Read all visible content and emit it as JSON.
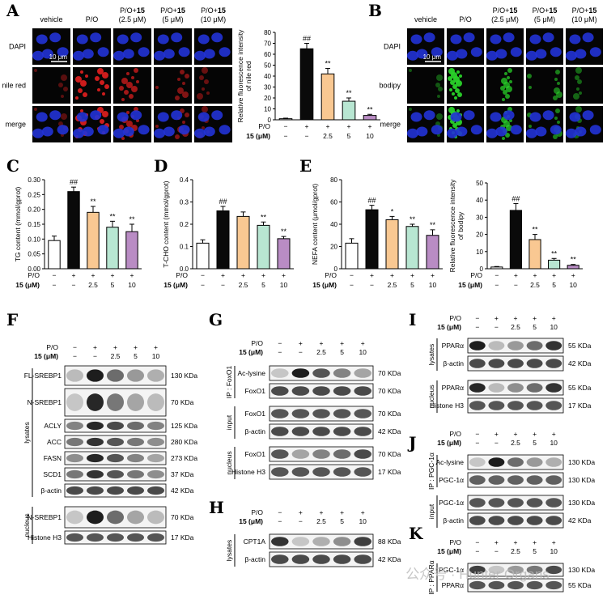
{
  "panel_labels": {
    "A": "A",
    "B": "B",
    "C": "C",
    "D": "D",
    "E": "E",
    "F": "F",
    "G": "G",
    "H": "H",
    "I": "I",
    "J": "J",
    "K": "K"
  },
  "microscopy": {
    "groups": [
      "vehicle",
      "P/O",
      "P/O+15|(2.5 μM)",
      "P/O+15|(5 μM)",
      "P/O+15|(10 μM)"
    ],
    "A_rows": [
      "DAPI",
      "nile red",
      "merge"
    ],
    "B_rows": [
      "DAPI",
      "bodipy",
      "merge"
    ],
    "scale_bar": "10 μm",
    "colors": {
      "dapi": "#2233d6",
      "nile_red": "#d81e1e",
      "bodipy": "#29d329",
      "background": "#050505"
    }
  },
  "treatment_table": {
    "row1_label": "P/O",
    "row2_label": "15 (μM)",
    "po": [
      "−",
      "+",
      "+",
      "+",
      "+"
    ],
    "dose": [
      "−",
      "−",
      "2.5",
      "5",
      "10"
    ]
  },
  "chart_data": [
    {
      "id": "A",
      "type": "bar",
      "title": "",
      "ylabel": "Relative fluorescence intensity of nile red",
      "ylim": [
        0,
        80
      ],
      "yticks": [
        0,
        10,
        20,
        30,
        40,
        50,
        60,
        70,
        80
      ],
      "values": [
        1,
        65,
        42,
        17,
        4
      ],
      "errors": [
        0.5,
        5,
        5,
        3,
        1
      ],
      "annotations": [
        "",
        "##",
        "**",
        "**",
        "**"
      ]
    },
    {
      "id": "C",
      "type": "bar",
      "title": "",
      "ylabel": "TG content (mmol/gprot)",
      "ylim": [
        0,
        0.3
      ],
      "yticks": [
        "0.00",
        "0.05",
        "0.10",
        "0.15",
        "0.20",
        "0.25",
        "0.30"
      ],
      "values": [
        0.095,
        0.26,
        0.19,
        0.14,
        0.125
      ],
      "errors": [
        0.015,
        0.015,
        0.02,
        0.02,
        0.025
      ],
      "annotations": [
        "",
        "##",
        "**",
        "**",
        "**"
      ]
    },
    {
      "id": "D",
      "type": "bar",
      "title": "",
      "ylabel": "T-CHO content (mmol/gprot)",
      "ylim": [
        0,
        0.4
      ],
      "yticks": [
        "0.0",
        "0.1",
        "0.2",
        "0.3",
        "0.4"
      ],
      "values": [
        0.115,
        0.26,
        0.235,
        0.195,
        0.135
      ],
      "errors": [
        0.015,
        0.02,
        0.02,
        0.015,
        0.01
      ],
      "annotations": [
        "",
        "##",
        "",
        "**",
        "**"
      ]
    },
    {
      "id": "E",
      "type": "bar",
      "title": "",
      "ylabel": "NEFA content (μmol/gprot)",
      "ylim": [
        0,
        80
      ],
      "yticks": [
        0,
        20,
        40,
        60,
        80
      ],
      "values": [
        23,
        53,
        44,
        38,
        30
      ],
      "errors": [
        4,
        4,
        3,
        2,
        5
      ],
      "annotations": [
        "",
        "##",
        "*",
        "**",
        "**"
      ]
    },
    {
      "id": "B",
      "type": "bar",
      "title": "",
      "ylabel": "Relative fluorescence intensity of bodipy",
      "ylim": [
        0,
        50
      ],
      "yticks": [
        0,
        10,
        20,
        30,
        40,
        50
      ],
      "values": [
        1,
        34,
        17,
        5,
        2
      ],
      "errors": [
        0.3,
        4,
        3,
        1,
        0.5
      ],
      "annotations": [
        "",
        "##",
        "**",
        "**",
        "**"
      ]
    }
  ],
  "bar_colors": [
    "#ffffff",
    "#0a0a0a",
    "#f9c892",
    "#b8e6d2",
    "#b98cc4"
  ],
  "blots": {
    "F": {
      "lysates": [
        "FL-SREBP1",
        "N-SREBP1",
        "ACLY",
        "ACC",
        "FASN",
        "SCD1",
        "β-actin"
      ],
      "lysates_kda": [
        "130 KDa",
        "70 KDa",
        "125 KDa",
        "280 KDa",
        "273 KDa",
        "37 KDa",
        "42 KDa"
      ],
      "nucleus": [
        "N-SREBP1",
        "Histone H3"
      ],
      "nucleus_kda": [
        "70 KDa",
        "17 KDa"
      ],
      "group_lysates": "lysates",
      "group_nucleus": "nucleus"
    },
    "G": {
      "ip_label": "IP : FoxO1",
      "ip_rows": [
        "Ac-lysine",
        "FoxO1"
      ],
      "ip_kda": [
        "70 KDa",
        "70 KDa"
      ],
      "input_label": "input",
      "input_rows": [
        "FoxO1",
        "β-actin"
      ],
      "input_kda": [
        "70 KDa",
        "42 KDa"
      ],
      "nucleus_label": "nucleus",
      "nucleus_rows": [
        "FoxO1",
        "Histone H3"
      ],
      "nucleus_kda": [
        "70 KDa",
        "17 KDa"
      ]
    },
    "H": {
      "group": "lysates",
      "rows": [
        "CPT1A",
        "β-actin"
      ],
      "kda": [
        "88 KDa",
        "42 KDa"
      ]
    },
    "I": {
      "lysates_label": "lysates",
      "lysates_rows": [
        "PPARα",
        "β-actin"
      ],
      "lysates_kda": [
        "55 KDa",
        "42 KDa"
      ],
      "nucleus_label": "nucleus",
      "nucleus_rows": [
        "PPARα",
        "Histone H3"
      ],
      "nucleus_kda": [
        "55 KDa",
        "17 KDa"
      ]
    },
    "J": {
      "ip_label": "IP : PGC-1α",
      "ip_rows": [
        "Ac-lysine",
        "PGC-1α"
      ],
      "ip_kda": [
        "130 KDa",
        "130 KDa"
      ],
      "input_label": "input",
      "input_rows": [
        "PGC-1α",
        "β-actin"
      ],
      "input_kda": [
        "130 KDa",
        "42 KDa"
      ]
    },
    "K": {
      "ip_label": "IP : PPARα",
      "rows": [
        "PGC-1α",
        "PPARα"
      ],
      "kda": [
        "130 KDa",
        "55 KDa"
      ]
    }
  },
  "watermark": "公众号 · Hunter Organs"
}
